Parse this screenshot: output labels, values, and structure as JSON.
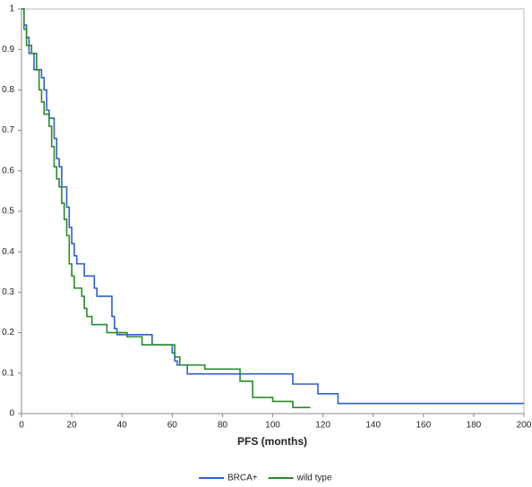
{
  "chart_data": {
    "type": "line",
    "step": "post",
    "x_label": "PFS (months)",
    "xlim": [
      0,
      200
    ],
    "xticks": [
      0,
      20,
      40,
      60,
      80,
      100,
      120,
      140,
      160,
      180,
      200
    ],
    "ylim": [
      0,
      1
    ],
    "yticks": [
      0,
      0.1,
      0.2,
      0.3,
      0.4,
      0.5,
      0.6,
      0.7,
      0.8,
      0.9,
      1
    ],
    "grid": false,
    "legend": "bottom",
    "series": [
      {
        "name": "BRCA+",
        "color": "#2e5fd0",
        "x": [
          0,
          1,
          2,
          3,
          5,
          8,
          9,
          10,
          11,
          13,
          14,
          15,
          16,
          18,
          19,
          20,
          21,
          22,
          25,
          29,
          30,
          36,
          37,
          38,
          52,
          60,
          61,
          62,
          66,
          108,
          118,
          126,
          200
        ],
        "values": [
          1,
          0.96,
          0.93,
          0.89,
          0.85,
          0.83,
          0.8,
          0.75,
          0.73,
          0.68,
          0.63,
          0.61,
          0.56,
          0.51,
          0.46,
          0.42,
          0.39,
          0.37,
          0.34,
          0.31,
          0.29,
          0.24,
          0.21,
          0.195,
          0.17,
          0.15,
          0.13,
          0.12,
          0.098,
          0.073,
          0.049,
          0.025,
          0.025
        ]
      },
      {
        "name": "wild type",
        "color": "#2a8a2a",
        "x": [
          0,
          1,
          2,
          4,
          6,
          7,
          8,
          9,
          11,
          12,
          13,
          14,
          15,
          16,
          17,
          18,
          19,
          20,
          21,
          24,
          25,
          26,
          28,
          34,
          42,
          48,
          61,
          63,
          73,
          87,
          92,
          100,
          108,
          115
        ],
        "values": [
          1,
          0.95,
          0.91,
          0.89,
          0.85,
          0.8,
          0.77,
          0.74,
          0.71,
          0.66,
          0.61,
          0.58,
          0.56,
          0.52,
          0.48,
          0.44,
          0.37,
          0.34,
          0.31,
          0.29,
          0.26,
          0.24,
          0.22,
          0.2,
          0.19,
          0.17,
          0.14,
          0.12,
          0.11,
          0.08,
          0.04,
          0.03,
          0.015,
          0.015
        ]
      }
    ]
  }
}
